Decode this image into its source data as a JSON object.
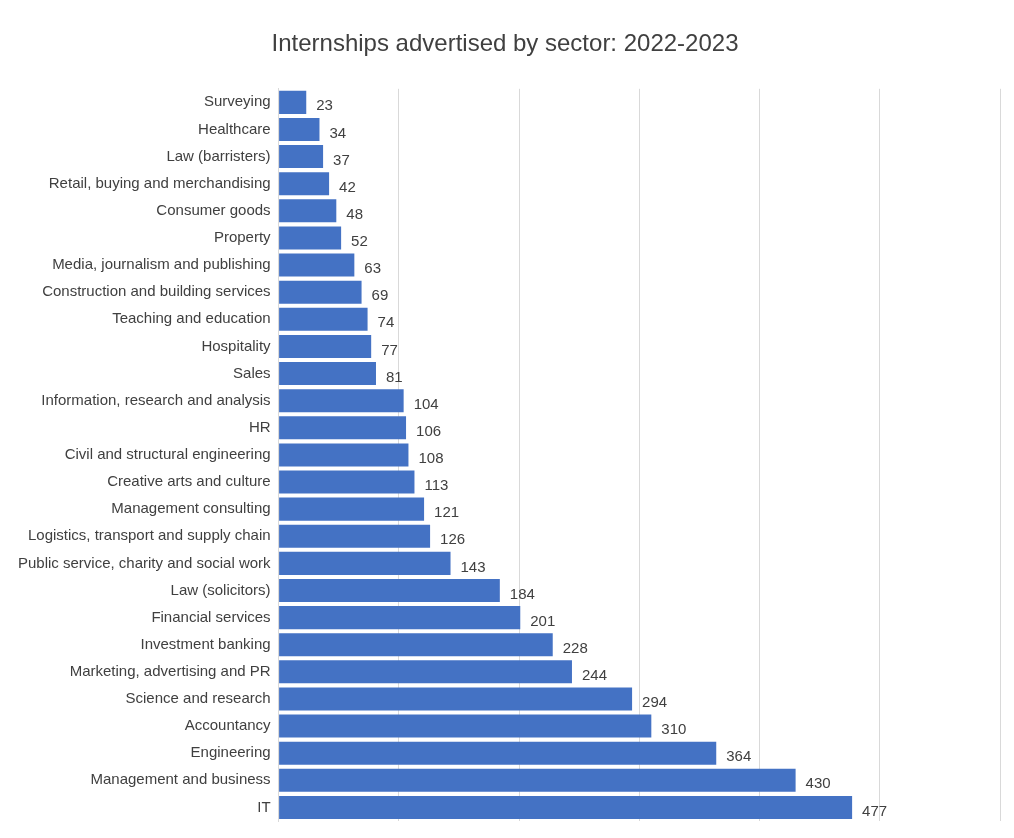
{
  "chart_data": {
    "type": "bar",
    "orientation": "horizontal",
    "title": "Internships advertised by sector: 2022-2023",
    "categories": [
      "Surveying",
      "Healthcare",
      "Law (barristers)",
      "Retail, buying and merchandising",
      "Consumer goods",
      "Property",
      "Media, journalism and publishing",
      "Construction and building services",
      "Teaching and education",
      "Hospitality",
      "Sales",
      "Information, research and analysis",
      "HR",
      "Civil and structural engineering",
      "Creative arts and culture",
      "Management consulting",
      "Logistics, transport and supply chain",
      "Public service, charity and social work",
      "Law (solicitors)",
      "Financial services",
      "Investment banking",
      "Marketing, advertising and PR",
      "Science and research",
      "Accountancy",
      "Engineering",
      "Management and business",
      "IT"
    ],
    "values": [
      23,
      34,
      37,
      42,
      48,
      52,
      63,
      69,
      74,
      77,
      81,
      104,
      106,
      108,
      113,
      121,
      126,
      143,
      184,
      201,
      228,
      244,
      294,
      310,
      364,
      430,
      477
    ],
    "color": "#4472c4",
    "xlim": [
      0,
      600
    ],
    "tick_labels": "y",
    "grid": "x",
    "data_labels": true,
    "legend": false
  }
}
